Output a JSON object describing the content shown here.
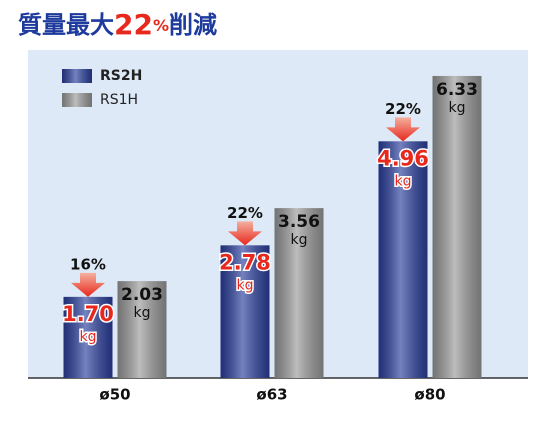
{
  "chart_data": {
    "type": "bar",
    "title": [
      "質量最大",
      "22",
      "%",
      "削減"
    ],
    "categories": [
      "ø50",
      "ø63",
      "ø80"
    ],
    "ylim": [
      0,
      7
    ],
    "unit": "kg",
    "reduction_labels": [
      "16%",
      "22%",
      "22%"
    ],
    "series": [
      {
        "name": "RS2H",
        "color": "#2b3f9e",
        "values": [
          1.7,
          2.78,
          4.96
        ],
        "value_labels": [
          "1.70",
          "2.78",
          "4.96"
        ]
      },
      {
        "name": "RS1H",
        "color": "#9a9a9a",
        "values": [
          2.03,
          3.56,
          6.33
        ],
        "value_labels": [
          "2.03",
          "3.56",
          "6.33"
        ]
      }
    ]
  }
}
